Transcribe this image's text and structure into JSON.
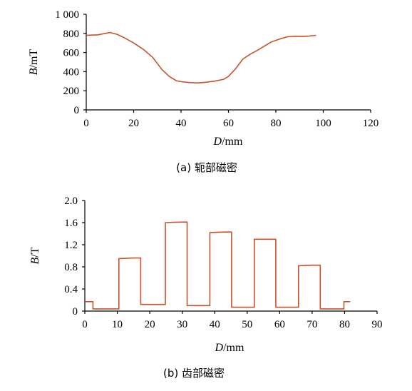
{
  "chart_data": [
    {
      "type": "line",
      "caption": "(a)  轭部磁密",
      "xlabel_italic": "D",
      "xlabel_unit": "/mm",
      "ylabel_italic": "B",
      "ylabel_unit": "/mT",
      "xlim": [
        0,
        120
      ],
      "ylim": [
        0,
        1000
      ],
      "xticks": [
        0,
        20,
        40,
        60,
        80,
        100,
        120
      ],
      "yticks": [
        0,
        200,
        400,
        600,
        800,
        1000
      ],
      "xtick_labels": [
        "0",
        "20",
        "40",
        "60",
        "80",
        "100",
        "120"
      ],
      "ytick_labels": [
        "0",
        "200",
        "400",
        "600",
        "800",
        "1 000"
      ],
      "grid": false,
      "color": "#c8532a",
      "series": [
        {
          "x": [
            0,
            2,
            5,
            8,
            10,
            13,
            16,
            20,
            24,
            28,
            32,
            35,
            38,
            40,
            44,
            47,
            50,
            54,
            58,
            60,
            63,
            66,
            69,
            72,
            75,
            78,
            82,
            85,
            88,
            91,
            94,
            97
          ],
          "y": [
            780,
            782,
            785,
            800,
            810,
            790,
            755,
            700,
            635,
            550,
            420,
            350,
            305,
            295,
            285,
            282,
            288,
            300,
            320,
            350,
            430,
            530,
            580,
            620,
            665,
            710,
            745,
            765,
            770,
            768,
            772,
            780
          ]
        }
      ]
    },
    {
      "type": "line",
      "caption": "(b)  齿部磁密",
      "xlabel_italic": "D",
      "xlabel_unit": "/mm",
      "ylabel_italic": "B",
      "ylabel_unit": "/T",
      "xlim": [
        0,
        90
      ],
      "ylim": [
        0,
        2.0
      ],
      "xticks": [
        0,
        10,
        20,
        30,
        40,
        50,
        60,
        70,
        80,
        90
      ],
      "yticks": [
        0,
        0.4,
        0.8,
        1.2,
        1.6,
        2.0
      ],
      "xtick_labels": [
        "0",
        "10",
        "20",
        "30",
        "40",
        "50",
        "60",
        "70",
        "80",
        "90"
      ],
      "ytick_labels": [
        "0",
        "0.4",
        "0.8",
        "1.2",
        "1.6",
        "2.0"
      ],
      "grid": false,
      "color": "#c8532a",
      "series": [
        {
          "x": [
            0,
            2.5,
            2.5,
            7,
            7,
            10.5,
            10.5,
            15,
            15,
            17.2,
            17.2,
            21.5,
            21.5,
            24.8,
            24.8,
            30,
            30,
            31.5,
            31.5,
            36,
            36,
            38.5,
            38.5,
            43,
            43,
            45.2,
            45.2,
            49,
            49,
            52.2,
            52.2,
            56,
            56,
            58.8,
            58.8,
            63,
            63,
            65.8,
            65.8,
            70,
            70,
            72.5,
            72.5,
            77,
            77,
            79.8,
            79.8,
            81.7
          ],
          "y": [
            0.17,
            0.17,
            0.04,
            0.04,
            0.04,
            0.04,
            0.95,
            0.96,
            0.96,
            0.96,
            0.12,
            0.12,
            0.12,
            0.12,
            1.6,
            1.61,
            1.61,
            1.61,
            0.1,
            0.1,
            0.1,
            0.1,
            1.42,
            1.43,
            1.43,
            1.43,
            0.07,
            0.07,
            0.07,
            0.07,
            1.3,
            1.3,
            1.3,
            1.3,
            0.07,
            0.07,
            0.07,
            0.07,
            0.82,
            0.83,
            0.83,
            0.83,
            0.04,
            0.04,
            0.04,
            0.04,
            0.17,
            0.17
          ]
        }
      ]
    }
  ]
}
